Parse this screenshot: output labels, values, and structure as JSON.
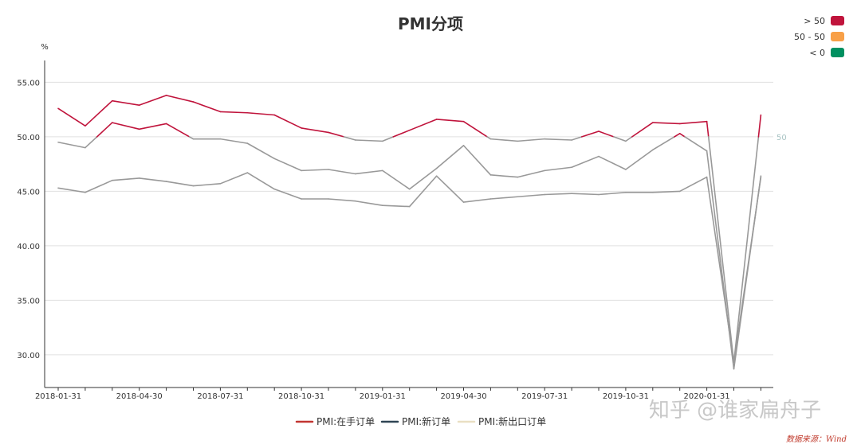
{
  "chart_data": {
    "type": "line",
    "title": "PMI分项",
    "ylabel": "%",
    "ylim": [
      27,
      57
    ],
    "yticks": [
      "30.00",
      "35.00",
      "40.00",
      "45.00",
      "50.00",
      "55.00"
    ],
    "x": [
      "2018-01-31",
      "2018-02-28",
      "2018-03-31",
      "2018-04-30",
      "2018-05-31",
      "2018-06-30",
      "2018-07-31",
      "2018-08-31",
      "2018-09-30",
      "2018-10-31",
      "2018-11-30",
      "2018-12-31",
      "2019-01-31",
      "2019-02-28",
      "2019-03-31",
      "2019-04-30",
      "2019-05-31",
      "2019-06-30",
      "2019-07-31",
      "2019-08-31",
      "2019-09-30",
      "2019-10-31",
      "2019-11-30",
      "2019-12-31",
      "2020-01-31",
      "2020-02-29",
      "2020-03-31"
    ],
    "xtick_labels": [
      "2018-01-31",
      "2018-04-30",
      "2018-07-31",
      "2018-10-31",
      "2019-01-31",
      "2019-04-30",
      "2019-07-31",
      "2019-10-31",
      "2020-01-31"
    ],
    "series": [
      {
        "name": "PMI:在手订单",
        "color": "#c23531",
        "values": [
          45.3,
          44.9,
          46.0,
          46.2,
          45.9,
          45.5,
          45.7,
          46.7,
          45.2,
          44.3,
          44.3,
          44.1,
          43.7,
          43.6,
          46.4,
          44.0,
          44.3,
          44.5,
          44.7,
          44.8,
          44.7,
          44.9,
          44.9,
          45.0,
          46.3,
          29.3,
          46.3
        ]
      },
      {
        "name": "PMI:新订单",
        "color": "#2f4554",
        "values": [
          52.6,
          51.0,
          53.3,
          52.9,
          53.8,
          53.2,
          52.3,
          52.2,
          52.0,
          50.8,
          50.4,
          49.7,
          49.6,
          50.6,
          51.6,
          51.4,
          49.8,
          49.6,
          49.8,
          49.7,
          50.5,
          49.6,
          51.3,
          51.2,
          51.4,
          29.3,
          52.0
        ]
      },
      {
        "name": "PMI:新出口订单",
        "color": "#e9dfc3",
        "values": [
          49.5,
          49.0,
          51.3,
          50.7,
          51.2,
          49.8,
          49.8,
          49.4,
          48.0,
          46.9,
          47.0,
          46.6,
          46.9,
          45.2,
          47.1,
          49.2,
          46.5,
          46.3,
          46.9,
          47.2,
          48.2,
          47.0,
          48.8,
          50.3,
          48.7,
          28.7,
          46.4
        ]
      }
    ],
    "markline": {
      "value": 50,
      "label": "50"
    },
    "visual_map": {
      "pieces": [
        {
          "label": "> 50",
          "color": "#c0143c"
        },
        {
          "label": "50 - 50",
          "color": "#f8a048"
        },
        {
          "label": "< 0",
          "color": "#009060"
        }
      ],
      "above_color": "#c0143c",
      "out_of_range_color": "#999999"
    },
    "legend_position": "bottom-center",
    "grid": true
  },
  "watermark": "知乎 @谁家扁舟子",
  "source": "数据来源：Wind"
}
